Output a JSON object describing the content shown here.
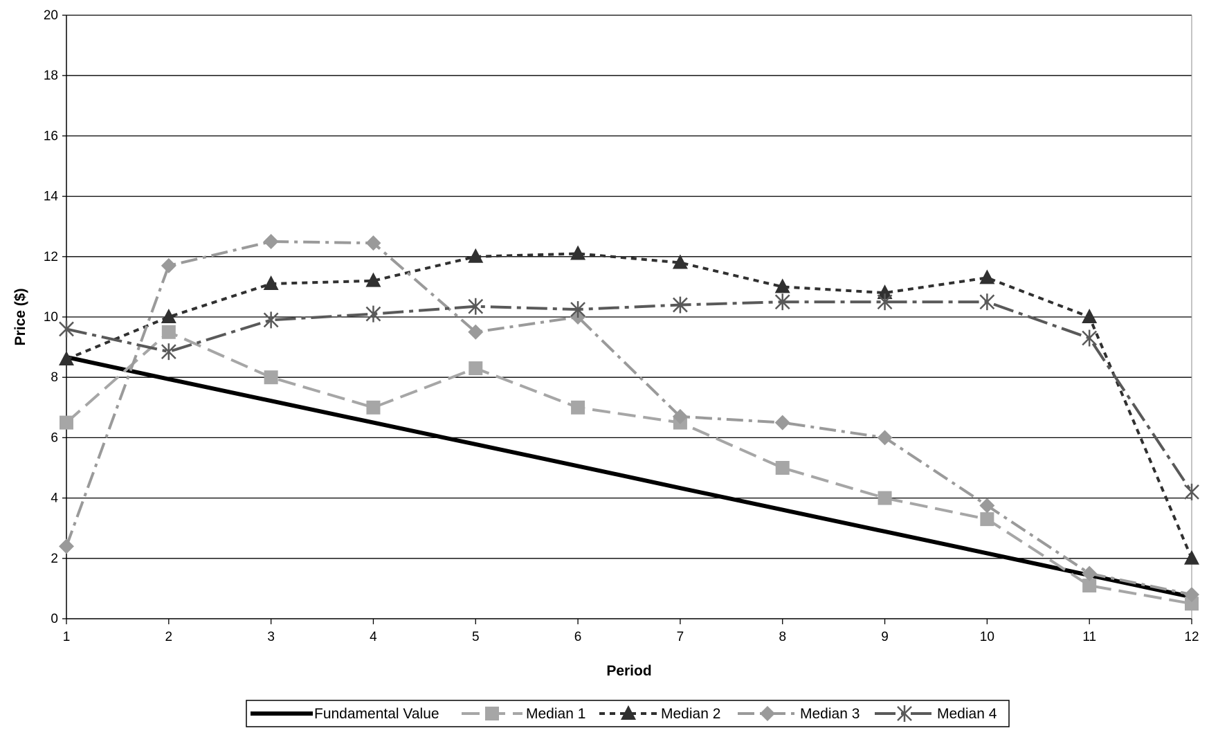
{
  "chart_data": {
    "type": "line",
    "title": "",
    "xlabel": "Period",
    "ylabel": "Price ($)",
    "x": [
      1,
      2,
      3,
      4,
      5,
      6,
      7,
      8,
      9,
      10,
      11,
      12
    ],
    "xlim": [
      1,
      12
    ],
    "ylim": [
      0,
      20
    ],
    "yticks": [
      0,
      2,
      4,
      6,
      8,
      10,
      12,
      14,
      16,
      18,
      20
    ],
    "grid": true,
    "legend_position": "bottom",
    "series": [
      {
        "name": "Fundamental Value",
        "values": [
          8.67,
          7.94,
          7.22,
          6.5,
          5.78,
          5.06,
          4.33,
          3.61,
          2.89,
          2.17,
          1.44,
          0.72
        ],
        "color": "#000000",
        "marker": "none",
        "dash": "solid"
      },
      {
        "name": "Median 1",
        "values": [
          6.5,
          9.5,
          8.0,
          7.0,
          8.3,
          7.0,
          6.5,
          5.0,
          4.0,
          3.3,
          1.1,
          0.5
        ],
        "color": "#a6a6a6",
        "marker": "square",
        "dash": "long-dash"
      },
      {
        "name": "Median 2",
        "values": [
          8.6,
          10.0,
          11.1,
          11.2,
          12.0,
          12.1,
          11.8,
          11.0,
          10.8,
          11.3,
          10.0,
          2.0
        ],
        "color": "#303030",
        "marker": "triangle",
        "dash": "short-dash"
      },
      {
        "name": "Median 3",
        "values": [
          2.4,
          11.7,
          12.5,
          12.45,
          9.5,
          10.0,
          6.7,
          6.5,
          6.0,
          3.75,
          1.5,
          0.8
        ],
        "color": "#9a9a9a",
        "marker": "diamond",
        "dash": "dash-dot"
      },
      {
        "name": "Median 4",
        "values": [
          9.6,
          8.85,
          9.9,
          10.1,
          10.35,
          10.25,
          10.4,
          10.5,
          10.5,
          10.5,
          9.3,
          4.2
        ],
        "color": "#595959",
        "marker": "asterisk",
        "dash": "long-dash-dot"
      }
    ]
  }
}
